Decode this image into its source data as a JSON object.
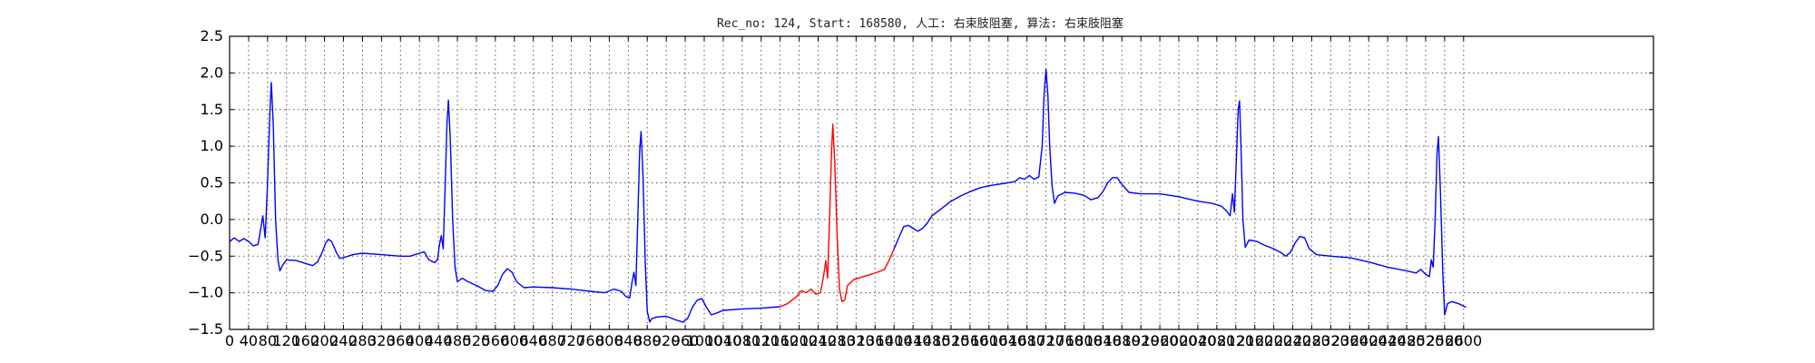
{
  "chart_data": {
    "type": "line",
    "title": "Rec_no: 124, Start: 168580, 人工: 右束肢阻塞, 算法: 右束肢阻塞",
    "xlabel": "",
    "ylabel": "",
    "xlim": [
      0,
      3000
    ],
    "ylim": [
      -1.5,
      2.5
    ],
    "grid": true,
    "y_ticks": [
      -1.5,
      -1.0,
      -0.5,
      0.0,
      0.5,
      1.0,
      1.5,
      2.0,
      2.5
    ],
    "y_tick_labels": [
      "−1.5",
      "−1.0",
      "−0.5",
      "0.0",
      "0.5",
      "1.0",
      "1.5",
      "2.0",
      "2.5"
    ],
    "x_ticks": [
      0,
      40,
      80,
      120,
      160,
      200,
      240,
      280,
      320,
      360,
      400,
      440,
      480,
      520,
      560,
      600,
      640,
      680,
      720,
      760,
      800,
      840,
      880,
      920,
      960,
      1000,
      1040,
      1080,
      1120,
      1160,
      1200,
      1240,
      1280,
      1320,
      1360,
      1400,
      1440,
      1480,
      1520,
      1560,
      1600,
      1640,
      1680,
      1720,
      1760,
      1800,
      1840,
      1880,
      1920,
      1960,
      2000,
      2040,
      2080,
      2120,
      2160,
      2200,
      2240,
      2280,
      2320,
      2360,
      2400,
      2440,
      2480,
      2520,
      2560,
      2600
    ],
    "x_tick_labels": [
      "0",
      "40",
      "80",
      "120",
      "160",
      "200",
      "240",
      "280",
      "320",
      "360",
      "400",
      "440",
      "480",
      "520",
      "560",
      "600",
      "640",
      "680",
      "720",
      "760",
      "800",
      "840",
      "880",
      "920",
      "960",
      "1000",
      "1040",
      "1080",
      "1120",
      "1160",
      "1200",
      "1240",
      "1280",
      "1320",
      "1360",
      "1400",
      "1440",
      "1480",
      "1520",
      "1560",
      "1600",
      "1640",
      "1680",
      "1720",
      "1760",
      "1800",
      "1840",
      "1880",
      "1920",
      "1960",
      "2000",
      "2040",
      "2080",
      "2120",
      "2160",
      "2200",
      "2240",
      "2280",
      "2320",
      "2360",
      "2400",
      "2440",
      "2480",
      "2520",
      "2560",
      "2600"
    ],
    "series": [
      {
        "color": "#0000ff",
        "points": [
          [
            0,
            -0.3
          ],
          [
            10,
            -0.25
          ],
          [
            20,
            -0.3
          ],
          [
            30,
            -0.26
          ],
          [
            40,
            -0.3
          ],
          [
            50,
            -0.36
          ],
          [
            60,
            -0.34
          ],
          [
            65,
            -0.15
          ],
          [
            70,
            0.05
          ],
          [
            75,
            -0.25
          ],
          [
            80,
            0.5
          ],
          [
            85,
            1.5
          ],
          [
            88,
            1.87
          ],
          [
            92,
            1.3
          ],
          [
            97,
            0.0
          ],
          [
            102,
            -0.55
          ],
          [
            106,
            -0.7
          ],
          [
            112,
            -0.62
          ],
          [
            120,
            -0.55
          ],
          [
            140,
            -0.56
          ],
          [
            160,
            -0.6
          ],
          [
            175,
            -0.63
          ],
          [
            185,
            -0.58
          ],
          [
            195,
            -0.45
          ],
          [
            202,
            -0.33
          ],
          [
            208,
            -0.27
          ],
          [
            215,
            -0.3
          ],
          [
            225,
            -0.45
          ],
          [
            232,
            -0.53
          ],
          [
            240,
            -0.52
          ],
          [
            260,
            -0.48
          ],
          [
            280,
            -0.46
          ],
          [
            320,
            -0.48
          ],
          [
            360,
            -0.5
          ],
          [
            380,
            -0.5
          ],
          [
            400,
            -0.46
          ],
          [
            410,
            -0.44
          ],
          [
            420,
            -0.55
          ],
          [
            432,
            -0.59
          ],
          [
            438,
            -0.55
          ],
          [
            442,
            -0.35
          ],
          [
            446,
            -0.22
          ],
          [
            450,
            -0.4
          ],
          [
            454,
            0.4
          ],
          [
            458,
            1.3
          ],
          [
            461,
            1.63
          ],
          [
            465,
            1.1
          ],
          [
            470,
            0.0
          ],
          [
            475,
            -0.65
          ],
          [
            480,
            -0.85
          ],
          [
            490,
            -0.8
          ],
          [
            500,
            -0.84
          ],
          [
            520,
            -0.9
          ],
          [
            540,
            -0.97
          ],
          [
            555,
            -0.98
          ],
          [
            565,
            -0.9
          ],
          [
            575,
            -0.75
          ],
          [
            585,
            -0.67
          ],
          [
            595,
            -0.72
          ],
          [
            605,
            -0.85
          ],
          [
            620,
            -0.93
          ],
          [
            640,
            -0.92
          ],
          [
            680,
            -0.93
          ],
          [
            720,
            -0.95
          ],
          [
            760,
            -0.98
          ],
          [
            790,
            -1.0
          ],
          [
            810,
            -0.95
          ],
          [
            825,
            -0.98
          ],
          [
            835,
            -1.05
          ],
          [
            843,
            -1.07
          ],
          [
            848,
            -0.85
          ],
          [
            852,
            -0.72
          ],
          [
            856,
            -0.9
          ],
          [
            860,
            0.0
          ],
          [
            864,
            0.95
          ],
          [
            867,
            1.2
          ],
          [
            871,
            0.6
          ],
          [
            876,
            -0.6
          ],
          [
            880,
            -1.25
          ],
          [
            885,
            -1.4
          ],
          [
            890,
            -1.35
          ],
          [
            900,
            -1.33
          ],
          [
            920,
            -1.32
          ],
          [
            940,
            -1.37
          ],
          [
            955,
            -1.4
          ],
          [
            965,
            -1.35
          ],
          [
            975,
            -1.2
          ],
          [
            985,
            -1.1
          ],
          [
            995,
            -1.08
          ],
          [
            1005,
            -1.2
          ],
          [
            1015,
            -1.3
          ],
          [
            1025,
            -1.28
          ],
          [
            1040,
            -1.24
          ],
          [
            1080,
            -1.22
          ],
          [
            1120,
            -1.21
          ],
          [
            1160,
            -1.19
          ]
        ]
      },
      {
        "color": "#ff0000",
        "points": [
          [
            1160,
            -1.19
          ],
          [
            1175,
            -1.15
          ],
          [
            1185,
            -1.1
          ],
          [
            1195,
            -1.05
          ],
          [
            1205,
            -0.97
          ],
          [
            1215,
            -1.0
          ],
          [
            1225,
            -0.95
          ],
          [
            1235,
            -1.02
          ],
          [
            1245,
            -1.0
          ],
          [
            1252,
            -0.75
          ],
          [
            1256,
            -0.56
          ],
          [
            1260,
            -0.8
          ],
          [
            1264,
            0.0
          ],
          [
            1268,
            0.9
          ],
          [
            1271,
            1.3
          ],
          [
            1275,
            0.8
          ],
          [
            1280,
            -0.2
          ],
          [
            1285,
            -0.95
          ],
          [
            1290,
            -1.12
          ],
          [
            1296,
            -1.1
          ],
          [
            1302,
            -0.9
          ],
          [
            1315,
            -0.82
          ],
          [
            1330,
            -0.79
          ],
          [
            1350,
            -0.75
          ],
          [
            1365,
            -0.72
          ],
          [
            1380,
            -0.68
          ],
          [
            1390,
            -0.55
          ],
          [
            1400,
            -0.4
          ]
        ]
      },
      {
        "color": "#0000ff",
        "points": [
          [
            1400,
            -0.4
          ],
          [
            1410,
            -0.25
          ],
          [
            1420,
            -0.1
          ],
          [
            1430,
            -0.08
          ],
          [
            1440,
            -0.12
          ],
          [
            1450,
            -0.16
          ],
          [
            1460,
            -0.12
          ],
          [
            1470,
            -0.05
          ],
          [
            1480,
            0.05
          ],
          [
            1500,
            0.15
          ],
          [
            1520,
            0.25
          ],
          [
            1540,
            0.32
          ],
          [
            1560,
            0.38
          ],
          [
            1580,
            0.43
          ],
          [
            1600,
            0.46
          ],
          [
            1620,
            0.48
          ],
          [
            1640,
            0.5
          ],
          [
            1655,
            0.52
          ],
          [
            1665,
            0.57
          ],
          [
            1675,
            0.55
          ],
          [
            1685,
            0.6
          ],
          [
            1695,
            0.55
          ],
          [
            1705,
            0.58
          ],
          [
            1712,
            1.0
          ],
          [
            1716,
            1.7
          ],
          [
            1720,
            2.05
          ],
          [
            1724,
            1.7
          ],
          [
            1728,
            1.0
          ],
          [
            1733,
            0.45
          ],
          [
            1738,
            0.22
          ],
          [
            1745,
            0.32
          ],
          [
            1760,
            0.37
          ],
          [
            1780,
            0.36
          ],
          [
            1800,
            0.33
          ],
          [
            1815,
            0.27
          ],
          [
            1830,
            0.3
          ],
          [
            1840,
            0.38
          ],
          [
            1850,
            0.5
          ],
          [
            1860,
            0.57
          ],
          [
            1870,
            0.57
          ],
          [
            1880,
            0.48
          ],
          [
            1895,
            0.37
          ],
          [
            1920,
            0.35
          ],
          [
            1960,
            0.35
          ],
          [
            2000,
            0.31
          ],
          [
            2040,
            0.25
          ],
          [
            2070,
            0.22
          ],
          [
            2090,
            0.18
          ],
          [
            2100,
            0.12
          ],
          [
            2108,
            0.05
          ],
          [
            2113,
            0.35
          ],
          [
            2117,
            0.1
          ],
          [
            2121,
            0.8
          ],
          [
            2125,
            1.5
          ],
          [
            2128,
            1.62
          ],
          [
            2131,
            1.0
          ],
          [
            2135,
            0.0
          ],
          [
            2140,
            -0.38
          ],
          [
            2148,
            -0.28
          ],
          [
            2165,
            -0.3
          ],
          [
            2180,
            -0.35
          ],
          [
            2200,
            -0.4
          ],
          [
            2215,
            -0.45
          ],
          [
            2225,
            -0.5
          ],
          [
            2235,
            -0.45
          ],
          [
            2245,
            -0.32
          ],
          [
            2255,
            -0.23
          ],
          [
            2265,
            -0.25
          ],
          [
            2275,
            -0.4
          ],
          [
            2290,
            -0.48
          ],
          [
            2320,
            -0.5
          ],
          [
            2360,
            -0.52
          ],
          [
            2400,
            -0.58
          ],
          [
            2440,
            -0.65
          ],
          [
            2480,
            -0.7
          ],
          [
            2500,
            -0.73
          ],
          [
            2510,
            -0.68
          ],
          [
            2520,
            -0.75
          ],
          [
            2528,
            -0.78
          ],
          [
            2532,
            -0.55
          ],
          [
            2536,
            -0.65
          ],
          [
            2540,
            0.0
          ],
          [
            2544,
            0.9
          ],
          [
            2547,
            1.13
          ],
          [
            2551,
            0.4
          ],
          [
            2556,
            -0.7
          ],
          [
            2560,
            -1.3
          ],
          [
            2566,
            -1.15
          ],
          [
            2575,
            -1.12
          ],
          [
            2590,
            -1.15
          ],
          [
            2605,
            -1.2
          ]
        ]
      }
    ]
  }
}
